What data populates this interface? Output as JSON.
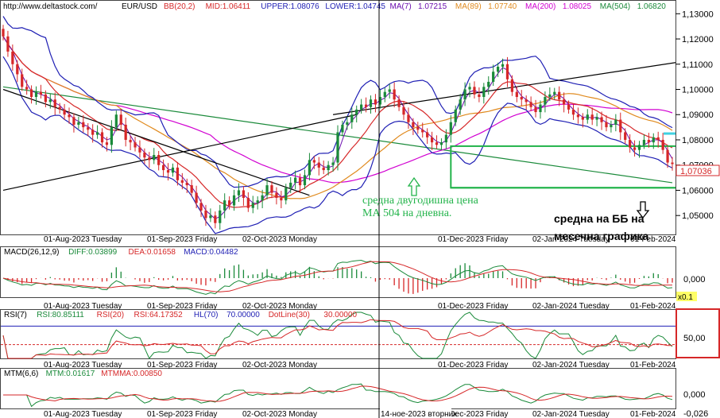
{
  "header": {
    "url": "http://www.deltastock.com/",
    "symbol": "EUR/USD",
    "items": [
      {
        "label": "BB(20,2)",
        "color": "#d62728"
      },
      {
        "label": "MID:1.06411",
        "color": "#d62728"
      },
      {
        "label": "UPPER:1.08076",
        "color": "#1f1fb4"
      },
      {
        "label": "LOWER:1.04745",
        "color": "#1f1fb4"
      },
      {
        "label": "MA(7)",
        "color": "#6a0dad"
      },
      {
        "label": "1.07215",
        "color": "#6a0dad"
      },
      {
        "label": "MA(89)",
        "color": "#e08a1e"
      },
      {
        "label": "1.07740",
        "color": "#e08a1e"
      },
      {
        "label": "MA(200)",
        "color": "#d100d1"
      },
      {
        "label": "1.08025",
        "color": "#d100d1"
      },
      {
        "label": "MA(504)",
        "color": "#1a8a3a"
      },
      {
        "label": "1.06820",
        "color": "#1a8a3a"
      }
    ]
  },
  "price_axis": {
    "ticks": [
      "1,13000",
      "1,12000",
      "1,11000",
      "1,10000",
      "1,09000",
      "1,08000",
      "1,07000",
      "1,06000",
      "1,05000"
    ],
    "last_price": "1,07036"
  },
  "date_labels": [
    "01-Aug-2023 Tuesday",
    "01-Sep-2023 Friday",
    "02-Oct-2023 Monday",
    "01-Dec-2023 Friday",
    "02-Jan-2024 Tuesday",
    "01-Feb-2024"
  ],
  "crosshair_date": "14-ное-2023 вторник",
  "annotations": {
    "ma504_line1": "средна двугодишна цена",
    "ma504_line2": "МА 504 на дневна.",
    "bb_line1": "средна на ББ на",
    "bb_line2": "месечна графика"
  },
  "macd": {
    "items": [
      {
        "label": "MACD(26,12,9)",
        "color": "#000000"
      },
      {
        "label": "DIFF:0.03899",
        "color": "#1a8a3a"
      },
      {
        "label": "DEA:0.01658",
        "color": "#d62728"
      },
      {
        "label": "MACD:0.04482",
        "color": "#1f1fb4"
      }
    ],
    "ticks": [
      "0,000"
    ],
    "scale_badge": "x0.1"
  },
  "rsi": {
    "items": [
      {
        "label": "RSI(7)",
        "color": "#000000"
      },
      {
        "label": "RSI:80.85111",
        "color": "#1a8a3a"
      },
      {
        "label": "RSI(20)",
        "color": "#d62728"
      },
      {
        "label": "RSI:64.17352",
        "color": "#d62728"
      },
      {
        "label": "HL(70)",
        "color": "#1f1fb4"
      },
      {
        "label": "70.00000",
        "color": "#1f1fb4"
      },
      {
        "label": "DotLine(30)",
        "color": "#d62728"
      },
      {
        "label": "30.00000",
        "color": "#d62728"
      }
    ],
    "ticks": [
      "50,00"
    ]
  },
  "mtm": {
    "items": [
      {
        "label": "MTM(6,6)",
        "color": "#000000"
      },
      {
        "label": "MTM:0.01617",
        "color": "#1a8a3a"
      },
      {
        "label": "MTMMA:0.00850",
        "color": "#d62728"
      }
    ],
    "ticks": [
      "0,000",
      "-0,026"
    ]
  },
  "chart_data": {
    "type": "candlestick",
    "ylim": [
      1.0425,
      1.1345
    ],
    "close": [
      1.121,
      1.115,
      1.11,
      1.106,
      1.101,
      1.1,
      1.097,
      1.099,
      1.098,
      1.095,
      1.096,
      1.093,
      1.092,
      1.09,
      1.089,
      1.086,
      1.087,
      1.085,
      1.084,
      1.082,
      1.083,
      1.079,
      1.078,
      1.085,
      1.09,
      1.086,
      1.08,
      1.079,
      1.077,
      1.075,
      1.073,
      1.072,
      1.074,
      1.07,
      1.068,
      1.067,
      1.069,
      1.064,
      1.063,
      1.062,
      1.059,
      1.055,
      1.052,
      1.049,
      1.05,
      1.047,
      1.052,
      1.056,
      1.054,
      1.058,
      1.06,
      1.057,
      1.053,
      1.055,
      1.056,
      1.058,
      1.062,
      1.059,
      1.057,
      1.056,
      1.061,
      1.063,
      1.065,
      1.062,
      1.066,
      1.072,
      1.071,
      1.069,
      1.068,
      1.07,
      1.071,
      1.083,
      1.086,
      1.087,
      1.09,
      1.092,
      1.094,
      1.093,
      1.096,
      1.094,
      1.097,
      1.099,
      1.1,
      1.096,
      1.093,
      1.09,
      1.087,
      1.085,
      1.084,
      1.083,
      1.081,
      1.079,
      1.078,
      1.079,
      1.082,
      1.087,
      1.092,
      1.096,
      1.1,
      1.101,
      1.098,
      1.097,
      1.101,
      1.103,
      1.107,
      1.109,
      1.11,
      1.104,
      1.099,
      1.097,
      1.096,
      1.095,
      1.093,
      1.091,
      1.094,
      1.097,
      1.098,
      1.099,
      1.096,
      1.094,
      1.092,
      1.09,
      1.089,
      1.088,
      1.09,
      1.088,
      1.089,
      1.087,
      1.085,
      1.086,
      1.088,
      1.083,
      1.08,
      1.077,
      1.076,
      1.078,
      1.08,
      1.079,
      1.081,
      1.08,
      1.076,
      1.071,
      1.0704
    ],
    "ma504": {
      "start": 1.101,
      "end": 1.063
    },
    "bb_mid_monthly": 1.061,
    "trendlines": [
      {
        "x0": 0,
        "y0": 1.1,
        "x1": 65,
        "y1": 1.058
      },
      {
        "x0": 0,
        "y0": 1.06,
        "x1": 75,
        "y1": 1.09
      },
      {
        "x0": 70,
        "y0": 1.09,
        "x1": 144,
        "y1": 1.111
      }
    ],
    "box": {
      "x0": 95,
      "x1": 144,
      "ymin": 1.061,
      "ymax": 1.0775
    }
  }
}
